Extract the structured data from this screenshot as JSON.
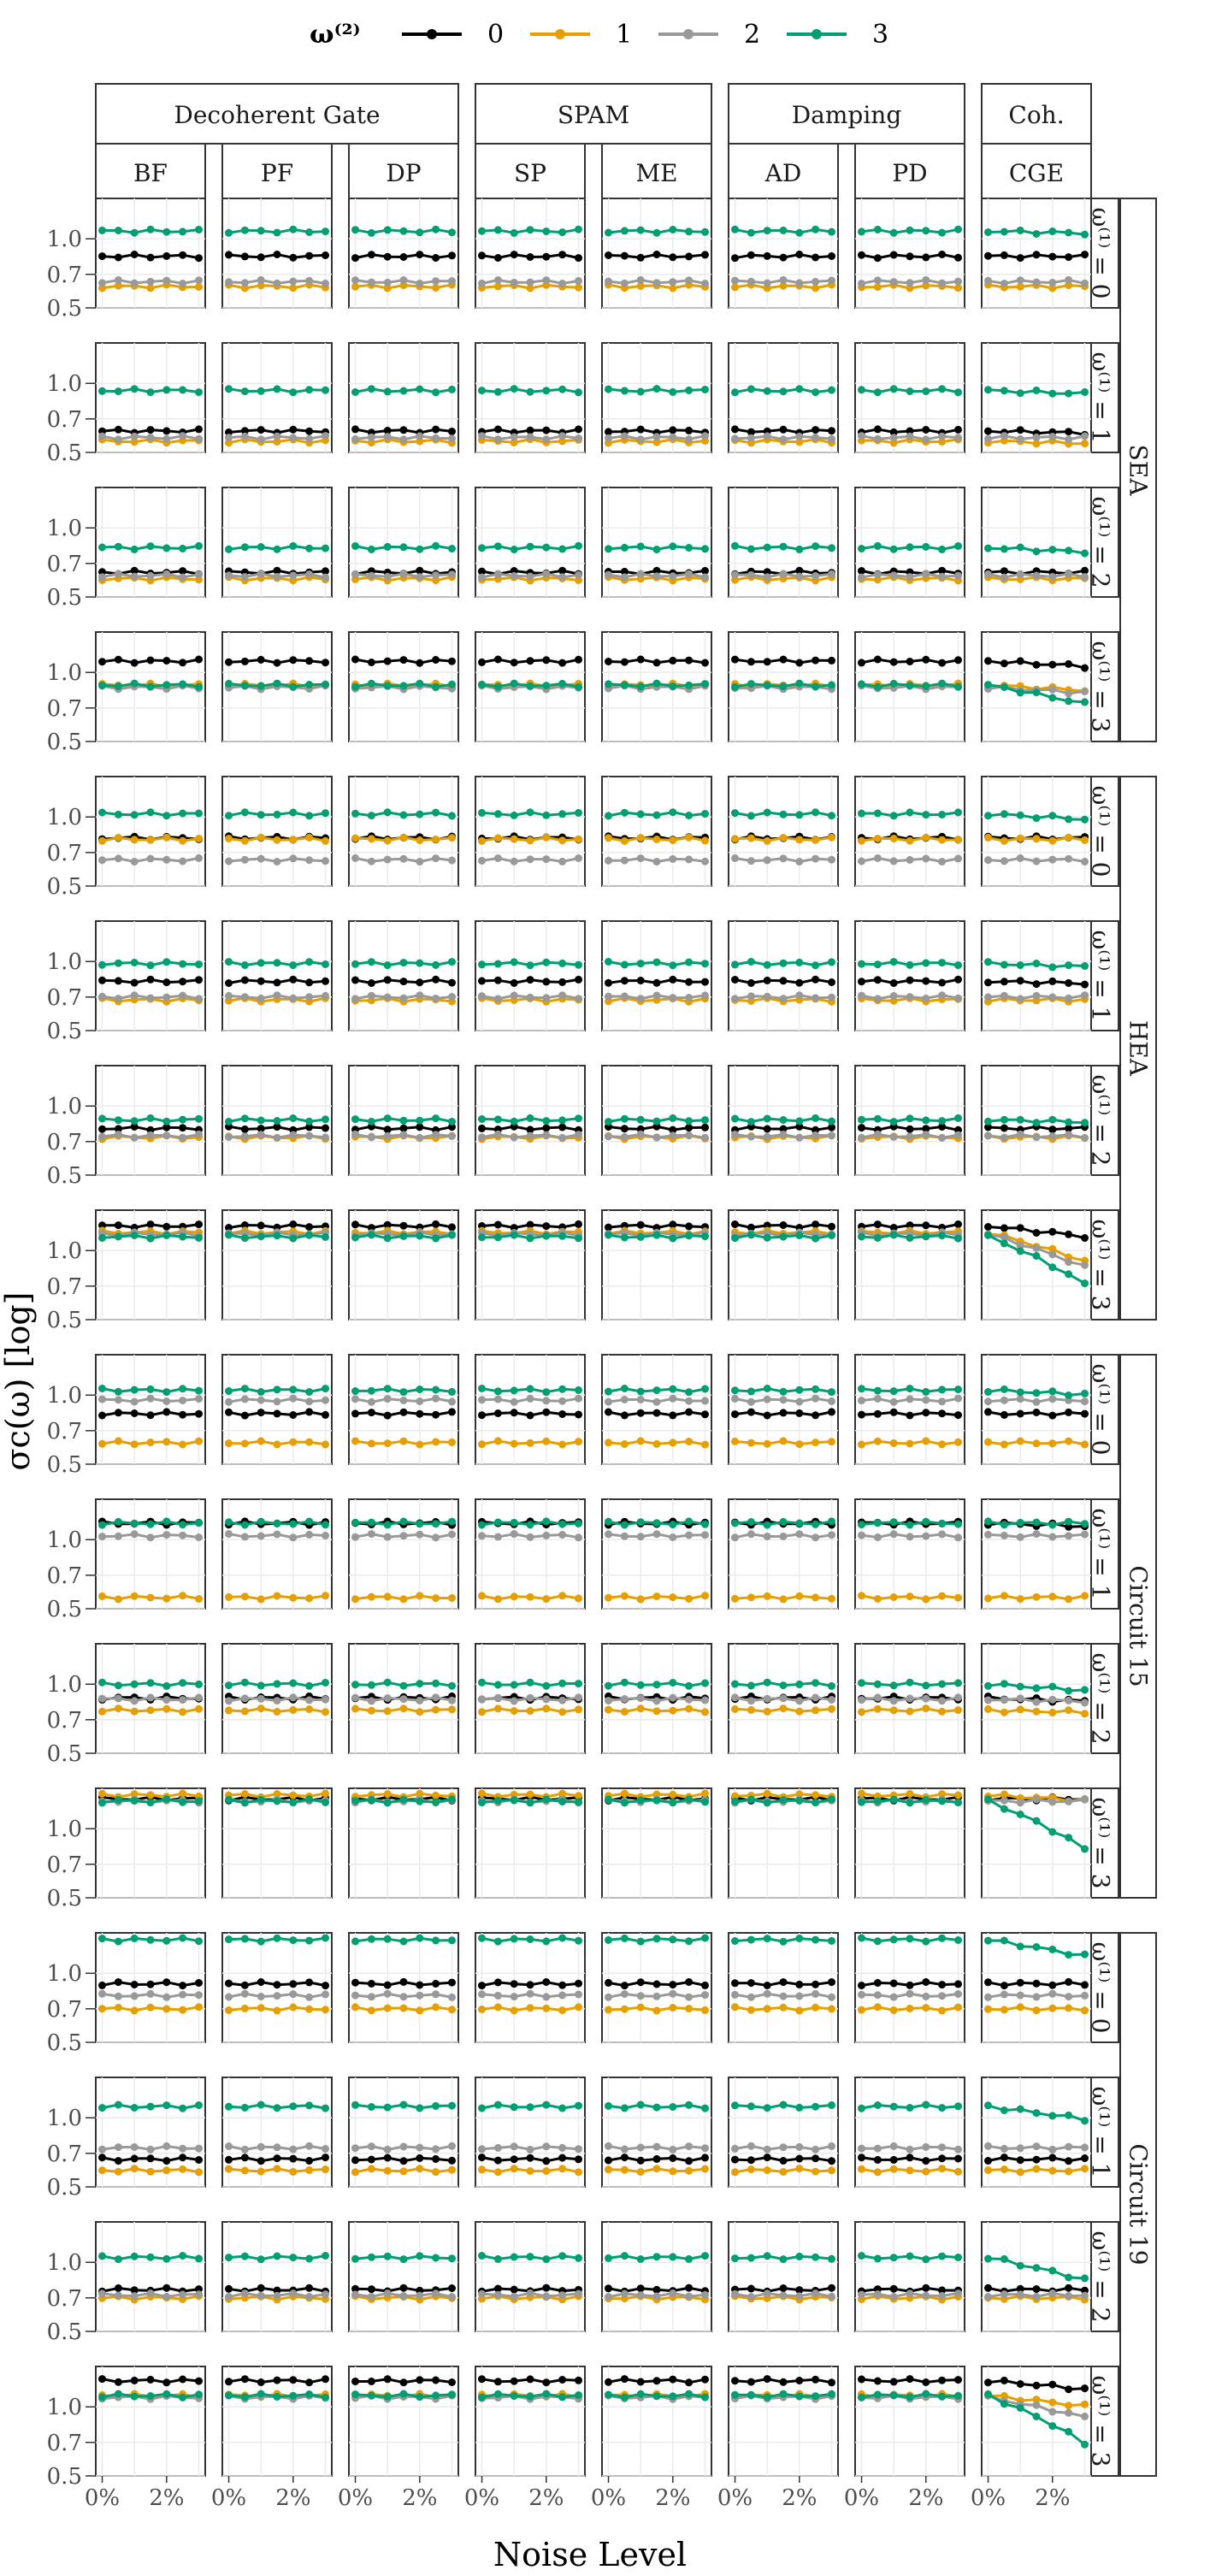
{
  "legend": {
    "title": "ω⁽²⁾",
    "items": [
      {
        "label": "0",
        "color": "#000000"
      },
      {
        "label": "1",
        "color": "#E69F00"
      },
      {
        "label": "2",
        "color": "#999999"
      },
      {
        "label": "3",
        "color": "#009E73"
      }
    ]
  },
  "col_groups": [
    {
      "label": "Decoherent Gate",
      "span": 3
    },
    {
      "label": "SPAM",
      "span": 2
    },
    {
      "label": "Damping",
      "span": 2
    },
    {
      "label": "Coh.",
      "span": 1
    }
  ],
  "columns": [
    "BF",
    "PF",
    "DP",
    "SP",
    "ME",
    "AD",
    "PD",
    "CGE"
  ],
  "row_groups": [
    "SEA",
    "HEA",
    "Circuit 15",
    "Circuit 19"
  ],
  "row_sub_label_prefix": "ω⁽¹⁾ = ",
  "row_sub_values": [
    "0",
    "1",
    "2",
    "3"
  ],
  "x_title": "Noise Level",
  "y_title": "σc(ω) [log]",
  "chart_data": {
    "type": "line",
    "facets": "4 row groups × 4 ω(1) values × 8 noise models",
    "x": [
      0,
      0.5,
      1.0,
      1.5,
      2.0,
      2.5,
      3.0
    ],
    "x_unit": "%",
    "x_ticks": [
      "0%",
      "2%"
    ],
    "y_scale": "log",
    "y_ticks": [
      "0.5",
      "0.7",
      "1.0"
    ],
    "ylim": [
      0.5,
      1.5
    ],
    "series_names": [
      "0",
      "1",
      "2",
      "3"
    ],
    "panels": {
      "SEA": {
        "0": {
          "base": {
            "0": 0.84,
            "1": 0.62,
            "2": 0.65,
            "3": 1.08
          },
          "cge_trend": {
            "0": 0,
            "1": 0,
            "2": 0,
            "3": -0.02
          }
        },
        "1": {
          "base": {
            "0": 0.62,
            "1": 0.56,
            "2": 0.58,
            "3": 0.93
          },
          "cge_trend": {
            "0": -0.02,
            "1": -0.02,
            "2": 0,
            "3": -0.03
          }
        },
        "2": {
          "base": {
            "0": 0.64,
            "1": 0.6,
            "2": 0.62,
            "3": 0.82
          },
          "cge_trend": {
            "0": 0,
            "1": 0,
            "2": 0,
            "3": -0.04
          }
        },
        "3": {
          "base": {
            "0": 1.12,
            "1": 0.88,
            "2": 0.86,
            "3": 0.88
          },
          "cge_trend": {
            "0": -0.05,
            "1": -0.05,
            "2": -0.05,
            "3": -0.17
          }
        }
      },
      "HEA": {
        "0": {
          "base": {
            "0": 0.81,
            "1": 0.8,
            "2": 0.65,
            "3": 1.03
          },
          "cge_trend": {
            "0": 0,
            "1": 0,
            "2": 0,
            "3": -0.05
          }
        },
        "1": {
          "base": {
            "0": 0.82,
            "1": 0.68,
            "2": 0.7,
            "3": 0.98
          },
          "cge_trend": {
            "0": -0.02,
            "1": 0,
            "2": 0,
            "3": -0.03
          }
        },
        "2": {
          "base": {
            "0": 0.8,
            "1": 0.73,
            "2": 0.74,
            "3": 0.87
          },
          "cge_trend": {
            "0": 0,
            "1": 0,
            "2": 0,
            "3": -0.02
          }
        },
        "3": {
          "base": {
            "0": 1.28,
            "1": 1.2,
            "2": 1.18,
            "3": 1.15
          },
          "cge_trend": {
            "0": -0.1,
            "1": -0.25,
            "2": -0.28,
            "3": -0.38
          }
        }
      },
      "Circuit 15": {
        "0": {
          "base": {
            "0": 0.83,
            "1": 0.62,
            "2": 0.95,
            "3": 1.05
          },
          "cge_trend": {
            "0": 0,
            "1": 0,
            "2": 0,
            "3": -0.04
          }
        },
        "1": {
          "base": {
            "0": 1.18,
            "1": 0.56,
            "2": 1.04,
            "3": 1.18
          },
          "cge_trend": {
            "0": -0.03,
            "1": 0,
            "2": 0,
            "3": 0
          }
        },
        "2": {
          "base": {
            "0": 0.87,
            "1": 0.77,
            "2": 0.86,
            "3": 1.0
          },
          "cge_trend": {
            "0": -0.03,
            "1": -0.02,
            "2": -0.02,
            "3": -0.06
          }
        },
        "3": {
          "base": {
            "0": 1.35,
            "1": 1.4,
            "2": 1.32,
            "3": 1.32
          },
          "cge_trend": {
            "0": 0,
            "1": -0.05,
            "2": 0,
            "3": -0.38
          }
        }
      },
      "Circuit 19": {
        "0": {
          "base": {
            "0": 0.9,
            "1": 0.7,
            "2": 0.8,
            "3": 1.4
          },
          "cge_trend": {
            "0": 0,
            "1": 0,
            "2": 0,
            "3": -0.15
          }
        },
        "1": {
          "base": {
            "0": 0.66,
            "1": 0.59,
            "2": 0.74,
            "3": 1.12
          },
          "cge_trend": {
            "0": 0,
            "1": 0,
            "2": 0,
            "3": -0.12
          }
        },
        "2": {
          "base": {
            "0": 0.76,
            "1": 0.7,
            "2": 0.72,
            "3": 1.05
          },
          "cge_trend": {
            "0": 0,
            "1": 0,
            "2": 0,
            "3": -0.2
          }
        },
        "3": {
          "base": {
            "0": 1.3,
            "1": 1.12,
            "2": 1.1,
            "3": 1.12
          },
          "cge_trend": {
            "0": -0.08,
            "1": -0.1,
            "2": -0.18,
            "3": -0.38
          }
        }
      }
    }
  }
}
